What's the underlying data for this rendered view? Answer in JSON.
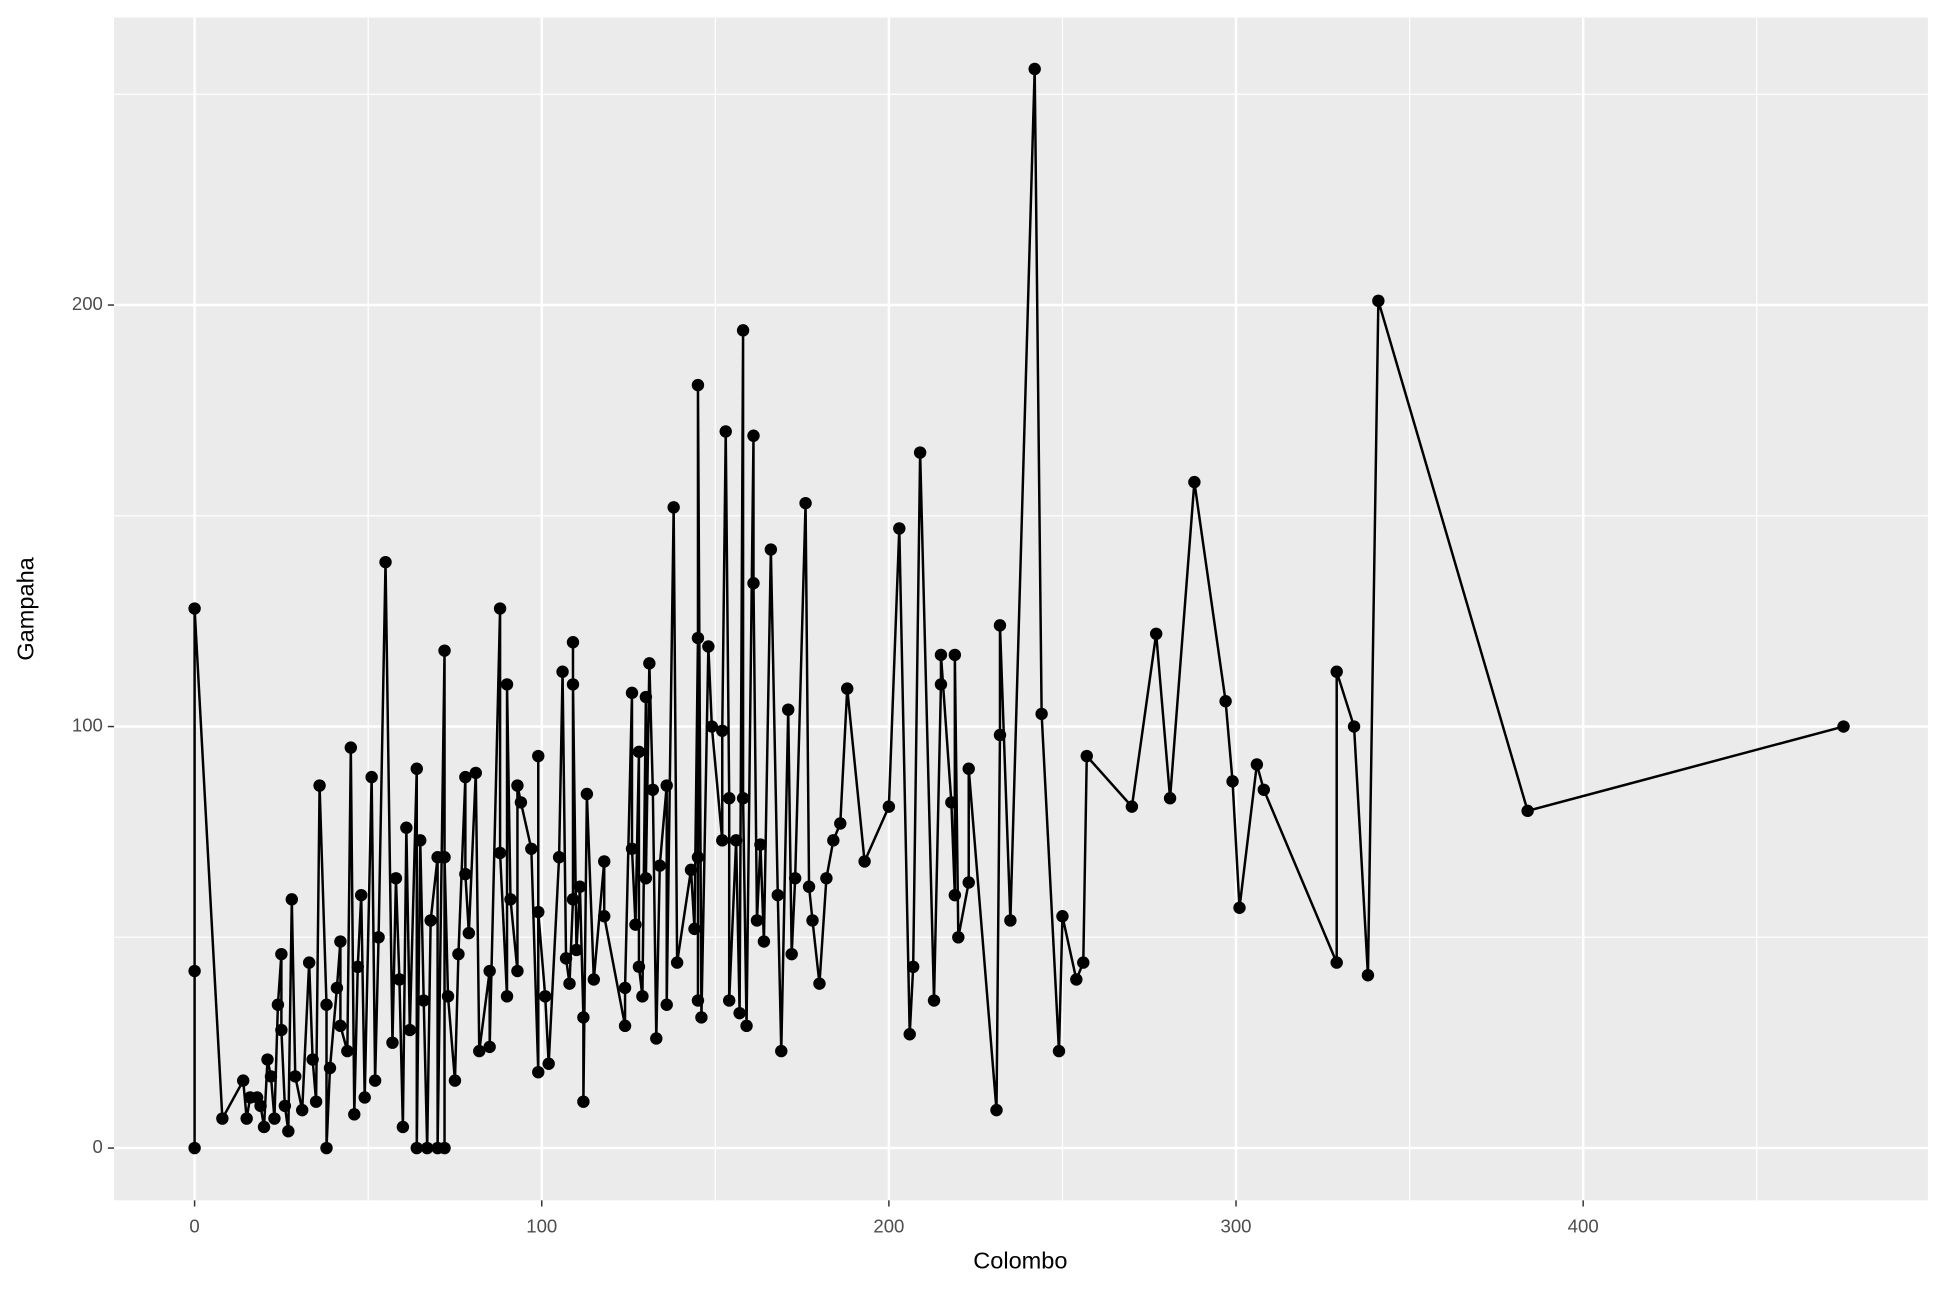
{
  "chart_data": {
    "type": "line",
    "markers": true,
    "color": "#000000",
    "xlabel": "Colombo",
    "ylabel": "Gampaha",
    "xlim": [
      -23.2,
      499.3
    ],
    "ylim": [
      -12.4,
      268.2
    ],
    "xticks": [
      0,
      100,
      200,
      300,
      400
    ],
    "yticks": [
      0,
      100,
      200
    ],
    "x_minor_ticks": [
      50,
      150,
      250,
      350,
      450
    ],
    "y_minor_ticks": [
      50,
      150,
      250
    ],
    "grid": true,
    "x": [
      0,
      0,
      0,
      8,
      14,
      15,
      16,
      18,
      19,
      20,
      21,
      22,
      23,
      24,
      25,
      25,
      26,
      27,
      28,
      29,
      31,
      33,
      34,
      35,
      36,
      38,
      38,
      39,
      41,
      42,
      42,
      44,
      45,
      46,
      47,
      48,
      49,
      51,
      52,
      53,
      55,
      57,
      58,
      59,
      60,
      61,
      62,
      64,
      64,
      65,
      66,
      67,
      68,
      70,
      70,
      72,
      72,
      72,
      73,
      75,
      76,
      78,
      78,
      79,
      81,
      82,
      85,
      85,
      88,
      88,
      90,
      90,
      91,
      93,
      93,
      94,
      97,
      99,
      99,
      99,
      101,
      102,
      105,
      106,
      107,
      108,
      109,
      109,
      109,
      110,
      111,
      112,
      112,
      113,
      115,
      118,
      118,
      124,
      124,
      126,
      126,
      127,
      128,
      128,
      129,
      130,
      130,
      131,
      132,
      133,
      134,
      136,
      136,
      138,
      139,
      143,
      144,
      145,
      145,
      145,
      145,
      146,
      148,
      149,
      152,
      152,
      153,
      154,
      154,
      156,
      157,
      158,
      158,
      159,
      161,
      161,
      162,
      163,
      164,
      166,
      168,
      169,
      171,
      172,
      173,
      176,
      177,
      178,
      180,
      182,
      184,
      186,
      188,
      193,
      200,
      203,
      206,
      207,
      209,
      213,
      215,
      215,
      218,
      219,
      219,
      220,
      223,
      223,
      231,
      232,
      232,
      235,
      242,
      244,
      249,
      250,
      254,
      256,
      257,
      270,
      277,
      281,
      288,
      297,
      299,
      301,
      306,
      308,
      329,
      329,
      334,
      338,
      341,
      384,
      475
    ],
    "values": [
      0,
      42,
      128,
      7,
      16,
      7,
      12,
      12,
      10,
      5,
      21,
      17,
      7,
      34,
      46,
      28,
      10,
      4,
      59,
      17,
      9,
      44,
      21,
      11,
      86,
      34,
      0,
      19,
      38,
      49,
      29,
      23,
      95,
      8,
      43,
      60,
      12,
      88,
      16,
      50,
      139,
      25,
      64,
      40,
      5,
      76,
      28,
      90,
      0,
      73,
      35,
      0,
      54,
      69,
      0,
      118,
      0,
      69,
      36,
      16,
      46,
      88,
      65,
      51,
      89,
      23,
      42,
      24,
      128,
      70,
      36,
      110,
      59,
      42,
      86,
      82,
      71,
      18,
      93,
      56,
      36,
      20,
      69,
      113,
      45,
      39,
      59,
      120,
      110,
      47,
      62,
      31,
      11,
      84,
      40,
      68,
      55,
      29,
      38,
      108,
      71,
      53,
      94,
      43,
      36,
      107,
      64,
      115,
      85,
      26,
      67,
      86,
      34,
      152,
      44,
      66,
      52,
      121,
      69,
      35,
      181,
      31,
      119,
      100,
      73,
      99,
      170,
      83,
      35,
      73,
      32,
      194,
      83,
      29,
      169,
      134,
      54,
      72,
      49,
      142,
      60,
      23,
      104,
      46,
      64,
      153,
      62,
      54,
      39,
      64,
      73,
      77,
      109,
      68,
      81,
      147,
      27,
      43,
      165,
      35,
      110,
      117,
      82,
      60,
      117,
      50,
      63,
      90,
      9,
      98,
      124,
      54,
      256,
      103,
      23,
      55,
      40,
      44,
      93,
      81,
      122,
      83,
      158,
      106,
      87,
      57,
      91,
      85,
      44,
      113,
      100,
      41,
      201,
      80,
      100
    ]
  }
}
